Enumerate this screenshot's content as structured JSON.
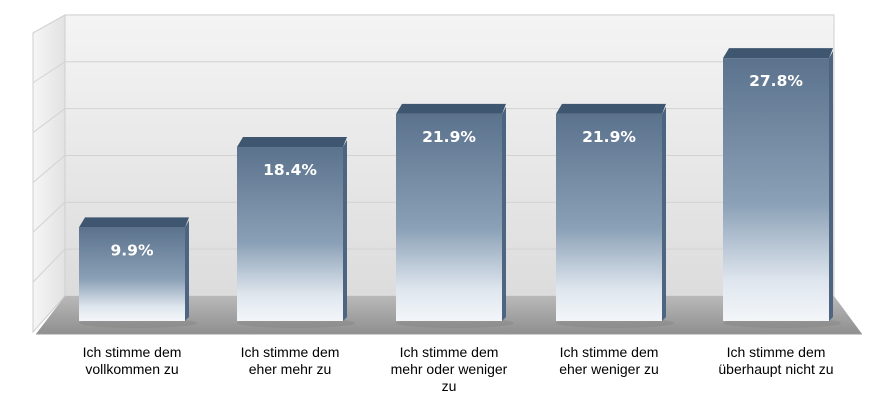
{
  "chart_data": {
    "type": "bar",
    "style": "3d-column",
    "categories": [
      [
        "Ich stimme dem",
        "vollkommen zu"
      ],
      [
        "Ich stimme dem",
        "eher mehr zu"
      ],
      [
        "Ich stimme dem",
        "mehr oder weniger",
        "zu"
      ],
      [
        "Ich stimme dem",
        "eher weniger  zu"
      ],
      [
        "Ich stimme dem",
        "überhaupt nicht zu"
      ]
    ],
    "values": [
      9.9,
      18.4,
      21.9,
      21.9,
      27.8
    ],
    "value_labels": [
      "9.9%",
      "18.4%",
      "21.9%",
      "21.9%",
      "27.8%"
    ],
    "unit": "%",
    "ylim": [
      0,
      30
    ],
    "grid": true,
    "title": "",
    "xlabel": "",
    "ylabel": "",
    "colors": {
      "bar_top": "#5f7691",
      "bar_mid": "#8097ae",
      "bar_bottom": "#e9eef3",
      "bar_cap": "#3f5670",
      "floor": "#a7a7a7",
      "wall": "#e6e6e6"
    }
  }
}
